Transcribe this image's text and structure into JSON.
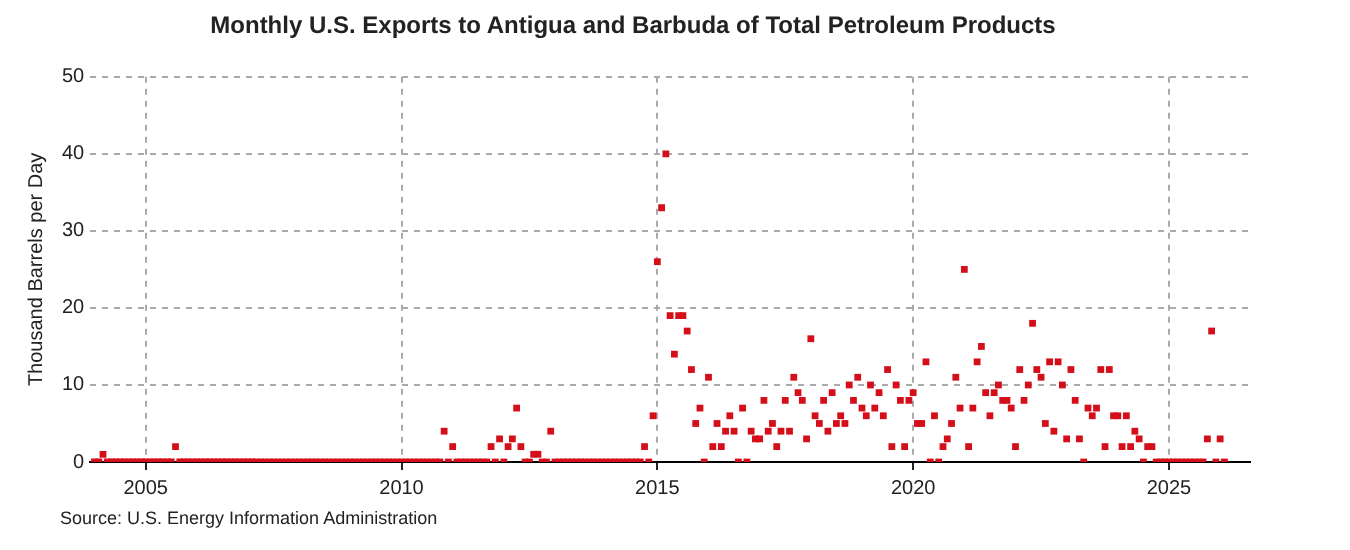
{
  "chart_data": {
    "type": "scatter",
    "title": "Monthly U.S. Exports to Antigua and Barbuda of Total Petroleum Products",
    "ylabel": "Thousand Barrels per Day",
    "annotations": [
      "Source: U.S. Energy Information Administration"
    ],
    "marker": "square",
    "grid": true,
    "color": "#d40f1a",
    "xlim": [
      "2003-12",
      "2026-08"
    ],
    "xticks": [
      "2005",
      "2010",
      "2015",
      "2020",
      "2025"
    ],
    "ylim": [
      0,
      50
    ],
    "yticks": [
      0,
      10,
      20,
      30,
      40,
      50
    ],
    "x": [
      "2004-01",
      "2004-02",
      "2004-03",
      "2004-04",
      "2004-05",
      "2004-06",
      "2004-07",
      "2004-08",
      "2004-09",
      "2004-10",
      "2004-11",
      "2004-12",
      "2005-01",
      "2005-02",
      "2005-03",
      "2005-04",
      "2005-05",
      "2005-06",
      "2005-07",
      "2005-08",
      "2005-09",
      "2005-10",
      "2005-11",
      "2005-12",
      "2006-01",
      "2006-02",
      "2006-03",
      "2006-04",
      "2006-05",
      "2006-06",
      "2006-07",
      "2006-08",
      "2006-09",
      "2006-10",
      "2006-11",
      "2006-12",
      "2007-01",
      "2007-02",
      "2007-03",
      "2007-04",
      "2007-05",
      "2007-06",
      "2007-07",
      "2007-08",
      "2007-09",
      "2007-10",
      "2007-11",
      "2007-12",
      "2008-01",
      "2008-02",
      "2008-03",
      "2008-04",
      "2008-05",
      "2008-06",
      "2008-07",
      "2008-08",
      "2008-09",
      "2008-10",
      "2008-11",
      "2008-12",
      "2009-01",
      "2009-02",
      "2009-03",
      "2009-04",
      "2009-05",
      "2009-06",
      "2009-07",
      "2009-08",
      "2009-09",
      "2009-10",
      "2009-11",
      "2009-12",
      "2010-01",
      "2010-02",
      "2010-03",
      "2010-04",
      "2010-05",
      "2010-06",
      "2010-07",
      "2010-08",
      "2010-09",
      "2010-10",
      "2010-11",
      "2010-12",
      "2011-01",
      "2011-02",
      "2011-03",
      "2011-04",
      "2011-05",
      "2011-06",
      "2011-07",
      "2011-08",
      "2011-09",
      "2011-10",
      "2011-11",
      "2011-12",
      "2012-01",
      "2012-02",
      "2012-03",
      "2012-04",
      "2012-05",
      "2012-06",
      "2012-07",
      "2012-08",
      "2012-09",
      "2012-10",
      "2012-11",
      "2012-12",
      "2013-01",
      "2013-02",
      "2013-03",
      "2013-04",
      "2013-05",
      "2013-06",
      "2013-07",
      "2013-08",
      "2013-09",
      "2013-10",
      "2013-11",
      "2013-12",
      "2014-01",
      "2014-02",
      "2014-03",
      "2014-04",
      "2014-05",
      "2014-06",
      "2014-07",
      "2014-08",
      "2014-09",
      "2014-10",
      "2014-11",
      "2014-12",
      "2015-01",
      "2015-02",
      "2015-03",
      "2015-04",
      "2015-05",
      "2015-06",
      "2015-07",
      "2015-08",
      "2015-09",
      "2015-10",
      "2015-11",
      "2015-12",
      "2016-01",
      "2016-02",
      "2016-03",
      "2016-04",
      "2016-05",
      "2016-06",
      "2016-07",
      "2016-08",
      "2016-09",
      "2016-10",
      "2016-11",
      "2016-12",
      "2017-01",
      "2017-02",
      "2017-03",
      "2017-04",
      "2017-05",
      "2017-06",
      "2017-07",
      "2017-08",
      "2017-09",
      "2017-10",
      "2017-11",
      "2017-12",
      "2018-01",
      "2018-02",
      "2018-03",
      "2018-04",
      "2018-05",
      "2018-06",
      "2018-07",
      "2018-08",
      "2018-09",
      "2018-10",
      "2018-11",
      "2018-12",
      "2019-01",
      "2019-02",
      "2019-03",
      "2019-04",
      "2019-05",
      "2019-06",
      "2019-07",
      "2019-08",
      "2019-09",
      "2019-10",
      "2019-11",
      "2019-12",
      "2020-01",
      "2020-02",
      "2020-03",
      "2020-04",
      "2020-05",
      "2020-06",
      "2020-07",
      "2020-08",
      "2020-09",
      "2020-10",
      "2020-11",
      "2020-12",
      "2021-01",
      "2021-02",
      "2021-03",
      "2021-04",
      "2021-05",
      "2021-06",
      "2021-07",
      "2021-08",
      "2021-09",
      "2021-10",
      "2021-11",
      "2021-12",
      "2022-01",
      "2022-02",
      "2022-03",
      "2022-04",
      "2022-05",
      "2022-06",
      "2022-07",
      "2022-08",
      "2022-09",
      "2022-10",
      "2022-11",
      "2022-12",
      "2023-01",
      "2023-02",
      "2023-03",
      "2023-04",
      "2023-05",
      "2023-06",
      "2023-07",
      "2023-08",
      "2023-09",
      "2023-10",
      "2023-11",
      "2023-12",
      "2024-01",
      "2024-02",
      "2024-03",
      "2024-04",
      "2024-05",
      "2024-06",
      "2024-07",
      "2024-08",
      "2024-09",
      "2024-10",
      "2024-11",
      "2024-12",
      "2025-01",
      "2025-02",
      "2025-03",
      "2025-04",
      "2025-05",
      "2025-06",
      "2025-07",
      "2025-08",
      "2025-09",
      "2025-10",
      "2025-11",
      "2025-12",
      "2026-01",
      "2026-02"
    ],
    "values": [
      0,
      0,
      1,
      0,
      0,
      0,
      0,
      0,
      0,
      0,
      0,
      0,
      0,
      0,
      0,
      0,
      0,
      0,
      0,
      2,
      0,
      0,
      0,
      0,
      0,
      0,
      0,
      0,
      0,
      0,
      0,
      0,
      0,
      0,
      0,
      0,
      0,
      0,
      0,
      0,
      0,
      0,
      0,
      0,
      0,
      0,
      0,
      0,
      0,
      0,
      0,
      0,
      0,
      0,
      0,
      0,
      0,
      0,
      0,
      0,
      0,
      0,
      0,
      0,
      0,
      0,
      0,
      0,
      0,
      0,
      0,
      0,
      0,
      0,
      0,
      0,
      0,
      0,
      0,
      0,
      0,
      0,
      4,
      0,
      2,
      0,
      0,
      0,
      0,
      0,
      0,
      0,
      0,
      2,
      0,
      3,
      0,
      2,
      3,
      7,
      2,
      0,
      0,
      1,
      1,
      0,
      0,
      4,
      0,
      0,
      0,
      0,
      0,
      0,
      0,
      0,
      0,
      0,
      0,
      0,
      0,
      0,
      0,
      0,
      0,
      0,
      0,
      0,
      0,
      2,
      0,
      6,
      26,
      33,
      40,
      19,
      14,
      19,
      19,
      17,
      12,
      5,
      7,
      0,
      11,
      2,
      5,
      2,
      4,
      6,
      4,
      0,
      7,
      0,
      4,
      3,
      3,
      8,
      4,
      5,
      2,
      4,
      8,
      4,
      11,
      9,
      8,
      3,
      16,
      6,
      5,
      8,
      4,
      9,
      5,
      6,
      5,
      10,
      8,
      11,
      7,
      6,
      10,
      7,
      9,
      6,
      12,
      2,
      10,
      8,
      2,
      8,
      9,
      5,
      5,
      13,
      0,
      6,
      0,
      2,
      3,
      5,
      11,
      7,
      25,
      2,
      7,
      13,
      15,
      9,
      6,
      9,
      10,
      8,
      8,
      7,
      2,
      12,
      8,
      10,
      18,
      12,
      11,
      5,
      13,
      4,
      13,
      10,
      3,
      12,
      8,
      3,
      0,
      7,
      6,
      7,
      12,
      2,
      12,
      6,
      6,
      2,
      6,
      2,
      4,
      3,
      0,
      2,
      2,
      0,
      0,
      0,
      0,
      0,
      0,
      0,
      0,
      0,
      0,
      0,
      0,
      3,
      17,
      0,
      3,
      0
    ]
  }
}
